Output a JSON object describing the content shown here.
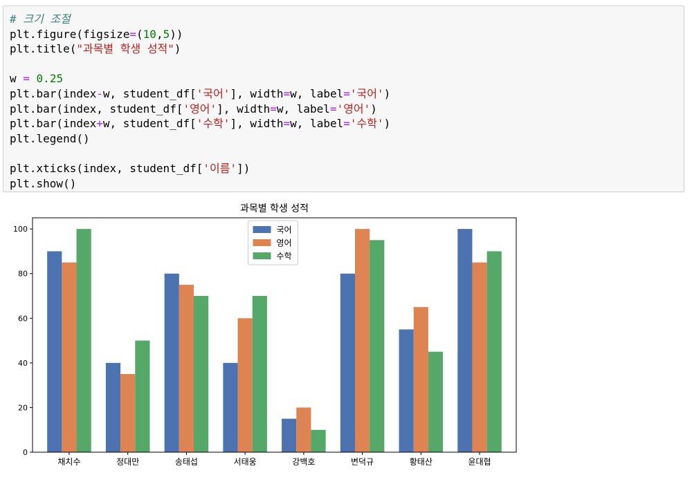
{
  "code_cell": {
    "lines": [
      [
        {
          "t": "comment",
          "v": "# 크기 조절"
        }
      ],
      [
        {
          "t": "plain",
          "v": "plt.figure(figsize"
        },
        {
          "t": "op",
          "v": "="
        },
        {
          "t": "plain",
          "v": "("
        },
        {
          "t": "number",
          "v": "10"
        },
        {
          "t": "plain",
          "v": ","
        },
        {
          "t": "number",
          "v": "5"
        },
        {
          "t": "plain",
          "v": "))"
        }
      ],
      [
        {
          "t": "plain",
          "v": "plt.title("
        },
        {
          "t": "string",
          "v": "\"과목별 학생 성적\""
        },
        {
          "t": "plain",
          "v": ")"
        }
      ],
      [],
      [
        {
          "t": "plain",
          "v": "w "
        },
        {
          "t": "op",
          "v": "="
        },
        {
          "t": "plain",
          "v": " "
        },
        {
          "t": "number",
          "v": "0.25"
        }
      ],
      [
        {
          "t": "plain",
          "v": "plt.bar(index"
        },
        {
          "t": "op",
          "v": "-"
        },
        {
          "t": "plain",
          "v": "w, student_df["
        },
        {
          "t": "string",
          "v": "'국어'"
        },
        {
          "t": "plain",
          "v": "], width"
        },
        {
          "t": "op",
          "v": "="
        },
        {
          "t": "plain",
          "v": "w, label"
        },
        {
          "t": "op",
          "v": "="
        },
        {
          "t": "string",
          "v": "'국어'"
        },
        {
          "t": "plain",
          "v": ")"
        }
      ],
      [
        {
          "t": "plain",
          "v": "plt.bar(index, student_df["
        },
        {
          "t": "string",
          "v": "'영어'"
        },
        {
          "t": "plain",
          "v": "], width"
        },
        {
          "t": "op",
          "v": "="
        },
        {
          "t": "plain",
          "v": "w, label"
        },
        {
          "t": "op",
          "v": "="
        },
        {
          "t": "string",
          "v": "'영어'"
        },
        {
          "t": "plain",
          "v": ")"
        }
      ],
      [
        {
          "t": "plain",
          "v": "plt.bar(index"
        },
        {
          "t": "op",
          "v": "+"
        },
        {
          "t": "plain",
          "v": "w, student_df["
        },
        {
          "t": "string",
          "v": "'수학'"
        },
        {
          "t": "plain",
          "v": "], width"
        },
        {
          "t": "op",
          "v": "="
        },
        {
          "t": "plain",
          "v": "w, label"
        },
        {
          "t": "op",
          "v": "="
        },
        {
          "t": "string",
          "v": "'수학'"
        },
        {
          "t": "plain",
          "v": ")"
        }
      ],
      [
        {
          "t": "plain",
          "v": "plt.legend()"
        }
      ],
      [],
      [
        {
          "t": "plain",
          "v": "plt.xticks(index, student_df["
        },
        {
          "t": "string",
          "v": "'이름'"
        },
        {
          "t": "plain",
          "v": "])"
        }
      ],
      [
        {
          "t": "plain",
          "v": "plt.show()"
        }
      ]
    ]
  },
  "chart_data": {
    "type": "bar",
    "title": "과목별 학생 성적",
    "xlabel": "",
    "ylabel": "",
    "categories": [
      "채치수",
      "정대만",
      "송태섭",
      "서태웅",
      "강백호",
      "변덕규",
      "황태산",
      "윤대협"
    ],
    "series": [
      {
        "name": "국어",
        "color": "#4c72b0",
        "values": [
          90,
          40,
          80,
          40,
          15,
          80,
          55,
          100
        ]
      },
      {
        "name": "영어",
        "color": "#dd8452",
        "values": [
          85,
          35,
          75,
          60,
          20,
          100,
          65,
          85
        ]
      },
      {
        "name": "수학",
        "color": "#55a868",
        "values": [
          100,
          50,
          70,
          70,
          10,
          95,
          45,
          90
        ]
      }
    ],
    "ylim": [
      0,
      105
    ],
    "yticks": [
      0,
      20,
      40,
      60,
      80,
      100
    ],
    "bar_width": 0.25,
    "grid": false,
    "legend_position": "upper center"
  }
}
